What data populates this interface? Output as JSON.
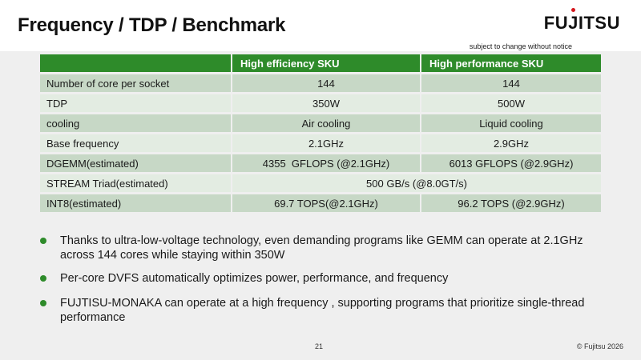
{
  "slide": {
    "title": "Frequency / TDP / Benchmark",
    "logo": {
      "pre": "FU",
      "i": "J",
      "post": "ITSU"
    },
    "notice": "subject to change without notice",
    "page_number": "21",
    "copyright": "© Fujitsu 2026"
  },
  "table": {
    "headers": [
      "",
      "High efficiency SKU",
      "High performance SKU"
    ],
    "rows": [
      {
        "label": "Number of core per socket",
        "a": "144",
        "b": "144"
      },
      {
        "label": "TDP",
        "a": "350W",
        "b": "500W"
      },
      {
        "label": "cooling",
        "a": "Air cooling",
        "b": "Liquid cooling"
      },
      {
        "label": "Base frequency",
        "a": "2.1GHz",
        "b": "2.9GHz"
      },
      {
        "label": "DGEMM(estimated)",
        "a": "4355  GFLOPS (@2.1GHz)",
        "b": "6013 GFLOPS (@2.9GHz)"
      },
      {
        "label": "STREAM Triad(estimated)",
        "merged": "500 GB/s (@8.0GT/s)"
      },
      {
        "label": "INT8(estimated)",
        "a": "69.7 TOPS(@2.1GHz)",
        "b": "96.2 TOPS (@2.9GHz)"
      }
    ]
  },
  "bullets": [
    "Thanks to ultra-low-voltage technology, even demanding programs like GEMM can operate at 2.1GHz across 144 cores while staying within 350W",
    "Per-core DVFS automatically optimizes power, performance, and frequency",
    "FUJTISU-MONAKA can operate at a high frequency , supporting programs that prioritize single-thread performance"
  ],
  "colors": {
    "accent_green": "#2e8b2a",
    "row_dark": "#c7d8c6",
    "row_light": "#e3ece2",
    "logo_dot": "#d4161c"
  }
}
